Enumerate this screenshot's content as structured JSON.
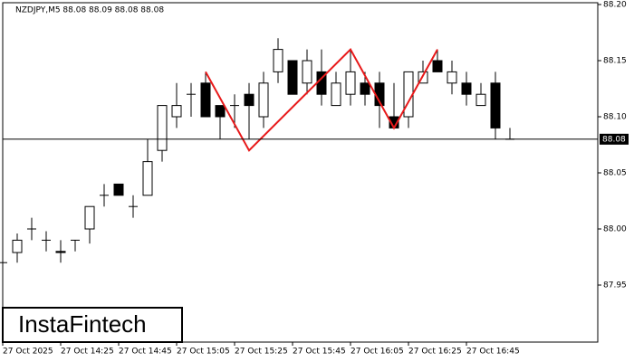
{
  "chart_data": {
    "type": "candlestick",
    "header": "NZDJPY,M5  88.08 88.09 88.08 88.08",
    "watermark": "InstaFintech",
    "categories": [
      "27 Oct 2025",
      null,
      null,
      null,
      "27 Oct 14:25",
      null,
      null,
      null,
      "27 Oct 14:45",
      null,
      null,
      null,
      "27 Oct 15:05",
      null,
      null,
      null,
      "27 Oct 15:25",
      null,
      null,
      null,
      "27 Oct 15:45",
      null,
      null,
      null,
      "27 Oct 16:05",
      null,
      null,
      null,
      "27 Oct 16:25",
      null,
      null,
      null,
      "27 Oct 16:45",
      null,
      null,
      null
    ],
    "open": [
      87.97,
      87.979,
      88.0,
      87.99,
      87.98,
      87.99,
      88.0,
      88.03,
      88.04,
      88.02,
      88.03,
      88.07,
      88.1,
      88.12,
      88.13,
      88.11,
      88.11,
      88.12,
      88.1,
      88.14,
      88.15,
      88.13,
      88.14,
      88.11,
      88.12,
      88.13,
      88.13,
      88.1,
      88.1,
      88.13,
      88.15,
      88.13,
      88.13,
      88.11,
      88.13,
      88.08
    ],
    "high": [
      87.975,
      87.996,
      88.01,
      87.998,
      87.99,
      87.99,
      88.02,
      88.04,
      88.04,
      88.03,
      88.08,
      88.11,
      88.13,
      88.13,
      88.14,
      88.11,
      88.12,
      88.13,
      88.14,
      88.17,
      88.15,
      88.16,
      88.16,
      88.14,
      88.16,
      88.14,
      88.14,
      88.13,
      88.14,
      88.15,
      88.16,
      88.15,
      88.14,
      88.13,
      88.14,
      88.09
    ],
    "low": [
      87.95,
      87.97,
      87.99,
      87.98,
      87.97,
      87.98,
      87.987,
      88.02,
      88.03,
      88.01,
      88.03,
      88.06,
      88.09,
      88.1,
      88.1,
      88.08,
      88.09,
      88.08,
      88.09,
      88.13,
      88.12,
      88.12,
      88.11,
      88.11,
      88.11,
      88.11,
      88.09,
      88.09,
      88.09,
      88.13,
      88.14,
      88.12,
      88.11,
      88.11,
      88.08,
      88.08
    ],
    "close": [
      87.97,
      87.99,
      88.0,
      87.99,
      87.979,
      87.99,
      88.02,
      88.03,
      88.03,
      88.02,
      88.06,
      88.11,
      88.11,
      88.12,
      88.1,
      88.1,
      88.11,
      88.11,
      88.13,
      88.16,
      88.12,
      88.15,
      88.12,
      88.13,
      88.14,
      88.12,
      88.11,
      88.09,
      88.14,
      88.14,
      88.14,
      88.14,
      88.12,
      88.12,
      88.09,
      88.08
    ],
    "up_color": "#ffffff",
    "down_color": "#000000",
    "wick_color": "#000000",
    "pattern": {
      "color": "#e8191a",
      "x": [
        14,
        17,
        24,
        27,
        30
      ],
      "values": [
        88.14,
        88.07,
        88.16,
        88.09,
        88.16
      ]
    },
    "current_price": 88.08,
    "ylim": [
      87.9,
      88.2
    ],
    "yticks": [
      {
        "value": 88.2,
        "label": "88.20"
      },
      88.15,
      {
        "value": 88.1,
        "label": "88.10"
      },
      88.05,
      {
        "value": 88.0,
        "label": "88.00"
      },
      87.95
    ]
  }
}
